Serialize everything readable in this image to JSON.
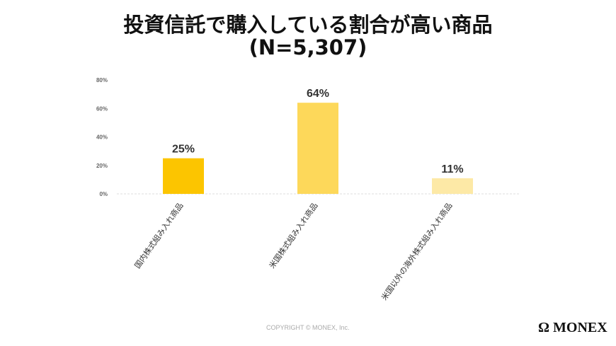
{
  "chart_data": {
    "type": "bar",
    "title": "投資信託で購入している割合が高い商品",
    "subtitle": "(N=5,307)",
    "categories": [
      "国内株式組み入れ商品",
      "米国株式組み入れ商品",
      "米国以外の海外株式組み入れ商品"
    ],
    "values": [
      25,
      64,
      11
    ],
    "data_labels": [
      "25%",
      "64%",
      "11%"
    ],
    "colors": [
      "#fcc500",
      "#fdd85a",
      "#fde9a6"
    ],
    "yticks": [
      "0%",
      "20%",
      "40%",
      "60%",
      "80%"
    ],
    "ylim": [
      0,
      80
    ],
    "grid": false,
    "xlabel": "",
    "ylabel": ""
  },
  "footer": {
    "copyright": "COPYRIGHT © MONEX, Inc.",
    "logo": "MONEX"
  }
}
